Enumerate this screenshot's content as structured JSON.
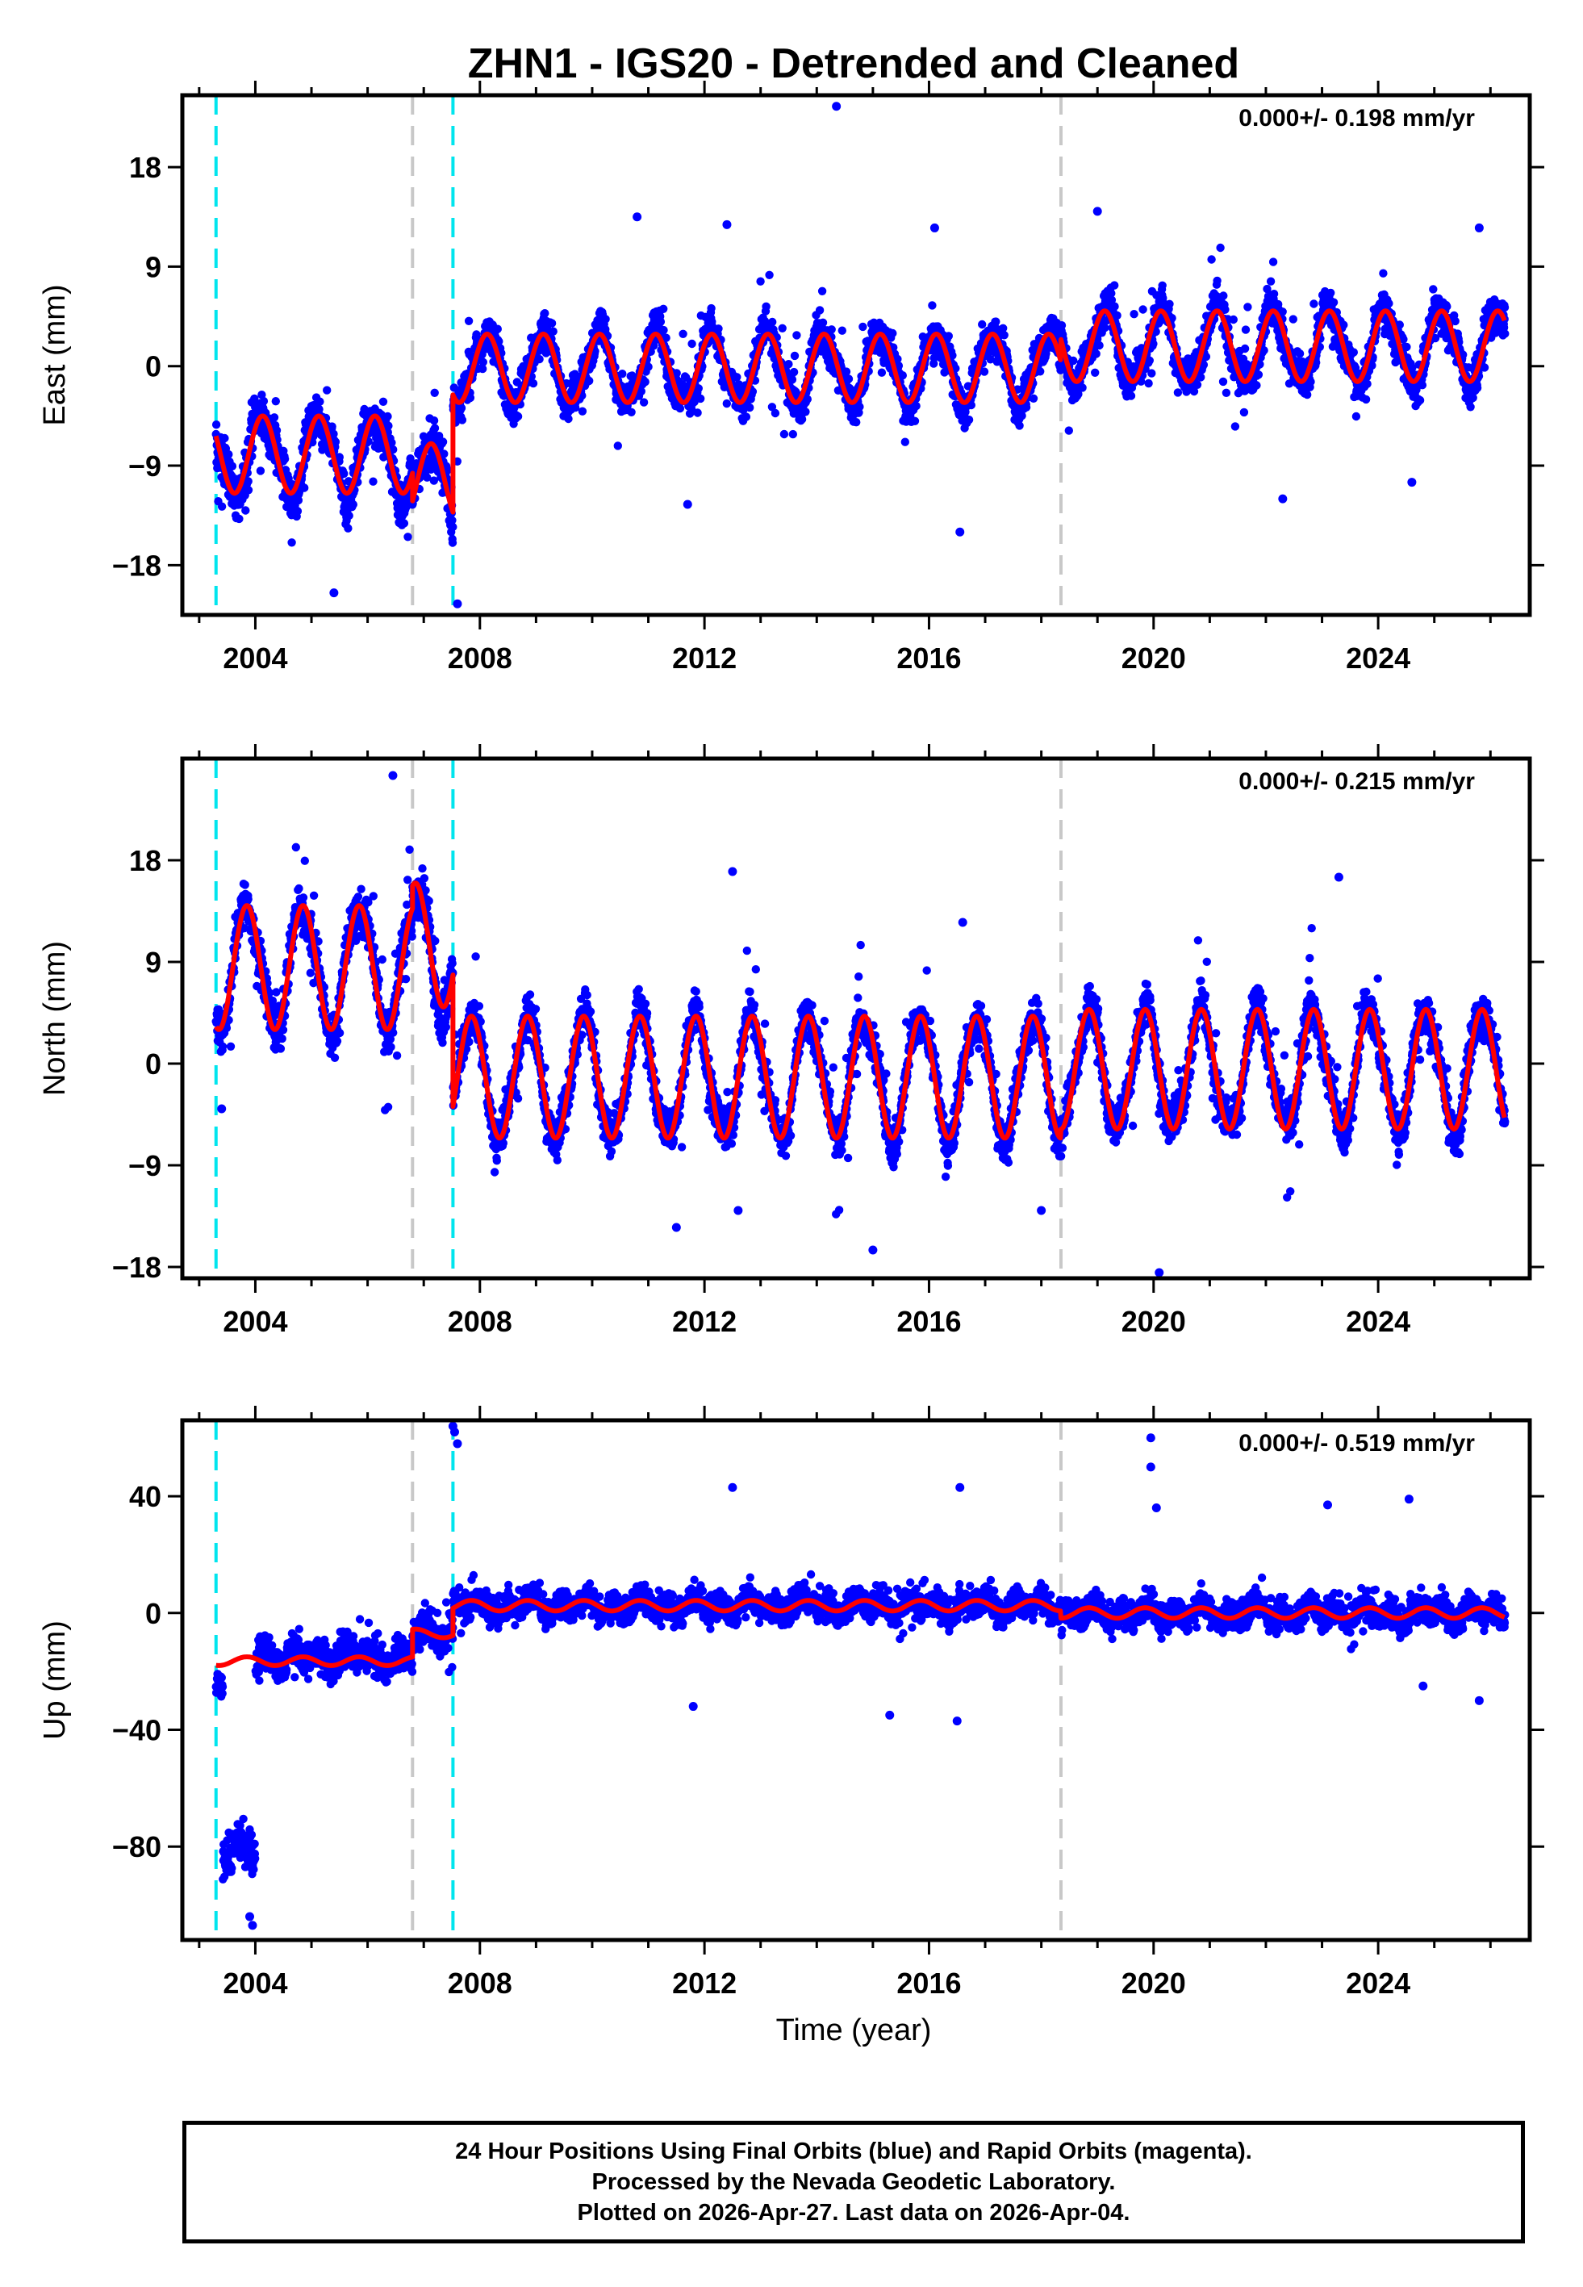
{
  "chart_data": {
    "type": "scatter",
    "title": "ZHN1 - IGS20 - Detrended and Cleaned",
    "xlabel": "Time (year)",
    "xlim": [
      2002.7,
      2026.7
    ],
    "x_ticks": [
      2004,
      2008,
      2012,
      2016,
      2020,
      2024
    ],
    "x_tick_labels": [
      "2004",
      "2008",
      "2012",
      "2016",
      "2020",
      "2024"
    ],
    "data_start": 2003.3,
    "data_end": 2026.26,
    "series_colors": {
      "points": "#0000ff",
      "model": "#ff0000",
      "equipment_change": "#00e5ee",
      "other_offset": "#c8c8c8"
    },
    "marker_lines": {
      "cyan": [
        2003.3,
        2007.52
      ],
      "gray": [
        2006.8,
        2018.35
      ]
    },
    "panels": [
      {
        "name": "east",
        "ylabel": "East (mm)",
        "ylim": [
          -22.5,
          24.5
        ],
        "y_ticks": [
          18,
          9,
          0,
          -9,
          -18
        ],
        "y_tick_labels": [
          "18",
          "9",
          "0",
          "-9",
          "-18"
        ],
        "rate_label": "0.000+/- 0.198 mm/yr",
        "segments": [
          {
            "start": 2003.3,
            "end": 2006.8,
            "offset": -8.0,
            "amp": 3.5,
            "phase": 2003.88,
            "scatter": 2.6,
            "noise": 3.5
          },
          {
            "start": 2006.8,
            "end": 2007.52,
            "offset": -10.5,
            "amp": 3.5,
            "phase": 2003.88,
            "scatter": 2.8,
            "noise": 3.5
          },
          {
            "start": 2007.52,
            "end": 2018.35,
            "offset": -0.2,
            "amp": 3.1,
            "phase": 2003.88,
            "scatter": 2.1,
            "noise": 3.2
          },
          {
            "start": 2018.35,
            "end": 2026.26,
            "offset": 1.8,
            "amp": 3.2,
            "phase": 2003.88,
            "scatter": 2.2,
            "noise": 3.2
          }
        ],
        "outliers": [
          [
            2014.35,
            23.5
          ],
          [
            2007.6,
            -21.5
          ],
          [
            2005.4,
            -20.5
          ],
          [
            2016.55,
            -15
          ],
          [
            2010.8,
            13.5
          ],
          [
            2012.4,
            12.8
          ],
          [
            2019.0,
            14
          ],
          [
            2022.3,
            -12
          ],
          [
            2011.7,
            -12.5
          ],
          [
            2024.6,
            -10.5
          ],
          [
            2016.1,
            12.5
          ],
          [
            2025.8,
            12.5
          ]
        ]
      },
      {
        "name": "north",
        "ylabel": "North (mm)",
        "ylim": [
          -19,
          27
        ],
        "y_ticks": [
          18,
          9,
          0,
          -9,
          -18
        ],
        "y_tick_labels": [
          "18",
          "9",
          "0",
          "-9",
          "-18"
        ],
        "rate_label": "0.000+/- 0.215 mm/yr",
        "segments": [
          {
            "start": 2003.3,
            "end": 2006.8,
            "offset": 8.5,
            "amp": 5.5,
            "phase": 2003.6,
            "scatter": 2.5,
            "noise": 3.5
          },
          {
            "start": 2006.8,
            "end": 2007.52,
            "offset": 10.5,
            "amp": 5.5,
            "phase": 2003.6,
            "scatter": 2.8,
            "noise": 3.5
          },
          {
            "start": 2007.52,
            "end": 2018.35,
            "offset": -1.2,
            "amp": 5.4,
            "phase": 2003.6,
            "scatter": 2.2,
            "noise": 3.5
          },
          {
            "start": 2018.35,
            "end": 2026.26,
            "offset": -0.5,
            "amp": 5.3,
            "phase": 2003.6,
            "scatter": 2.3,
            "noise": 3.5
          }
        ],
        "outliers": [
          [
            2006.45,
            25.5
          ],
          [
            2012.5,
            17
          ],
          [
            2015.0,
            -16.5
          ],
          [
            2020.1,
            -18.5
          ],
          [
            2023.3,
            16.5
          ],
          [
            2003.4,
            -4
          ],
          [
            2011.5,
            -14.5
          ],
          [
            2018.0,
            -13
          ],
          [
            2016.6,
            12.5
          ],
          [
            2012.6,
            -13
          ]
        ]
      },
      {
        "name": "up",
        "ylabel": "Up (mm)",
        "ylim": [
          -112,
          66
        ],
        "y_ticks": [
          40,
          0,
          -40,
          -80
        ],
        "y_tick_labels": [
          "40",
          "0",
          "-40",
          "-80"
        ],
        "rate_label": "0.000+/- 0.519 mm/yr",
        "segments": [
          {
            "start": 2003.3,
            "end": 2003.42,
            "offset": -25.0,
            "amp": 0,
            "phase": 2003.6,
            "scatter": 5.0,
            "noise": 4
          },
          {
            "start": 2003.42,
            "end": 2004.0,
            "offset": -80.0,
            "amp": 0,
            "phase": 2003.6,
            "scatter": 9.0,
            "noise": 5
          },
          {
            "start": 2004.0,
            "end": 2006.8,
            "offset": -15.0,
            "amp": 1.5,
            "phase": 2003.6,
            "scatter": 7.5,
            "noise": 7
          },
          {
            "start": 2006.8,
            "end": 2007.52,
            "offset": -7.0,
            "amp": 1.5,
            "phase": 2003.6,
            "scatter": 7.5,
            "noise": 7
          },
          {
            "start": 2007.52,
            "end": 2018.35,
            "offset": 2.5,
            "amp": 1.8,
            "phase": 2003.6,
            "scatter": 6.0,
            "noise": 5
          },
          {
            "start": 2018.35,
            "end": 2026.26,
            "offset": 0.0,
            "amp": 1.8,
            "phase": 2003.6,
            "scatter": 6.0,
            "noise": 5
          }
        ],
        "model_segments": [
          {
            "start": 2003.3,
            "end": 2006.8,
            "offset": -16.5,
            "amp": 1.5,
            "phase": 2003.6
          },
          {
            "start": 2006.8,
            "end": 2007.52,
            "offset": -7.0,
            "amp": 1.5,
            "phase": 2003.6
          },
          {
            "start": 2007.52,
            "end": 2018.35,
            "offset": 2.5,
            "amp": 1.8,
            "phase": 2003.6
          },
          {
            "start": 2018.35,
            "end": 2026.26,
            "offset": 0.0,
            "amp": 1.8,
            "phase": 2003.6
          }
        ],
        "outliers": [
          [
            2007.55,
            62
          ],
          [
            2007.6,
            58
          ],
          [
            2007.52,
            64
          ],
          [
            2019.95,
            60
          ],
          [
            2019.95,
            50
          ],
          [
            2020.05,
            36
          ],
          [
            2012.5,
            43
          ],
          [
            2016.55,
            43
          ],
          [
            2023.1,
            37
          ],
          [
            2024.55,
            39
          ],
          [
            2015.3,
            -35
          ],
          [
            2016.5,
            -37
          ],
          [
            2011.8,
            -32
          ],
          [
            2025.8,
            -30
          ],
          [
            2024.8,
            -25
          ],
          [
            2003.95,
            -107
          ],
          [
            2003.9,
            -104
          ]
        ]
      }
    ],
    "footer": {
      "line1": "24 Hour Positions Using Final Orbits (blue) and Rapid Orbits (magenta).",
      "line2": "Processed by the Nevada Geodetic Laboratory.",
      "line3": "Plotted on 2026-Apr-27. Last data on 2026-Apr-04."
    }
  }
}
